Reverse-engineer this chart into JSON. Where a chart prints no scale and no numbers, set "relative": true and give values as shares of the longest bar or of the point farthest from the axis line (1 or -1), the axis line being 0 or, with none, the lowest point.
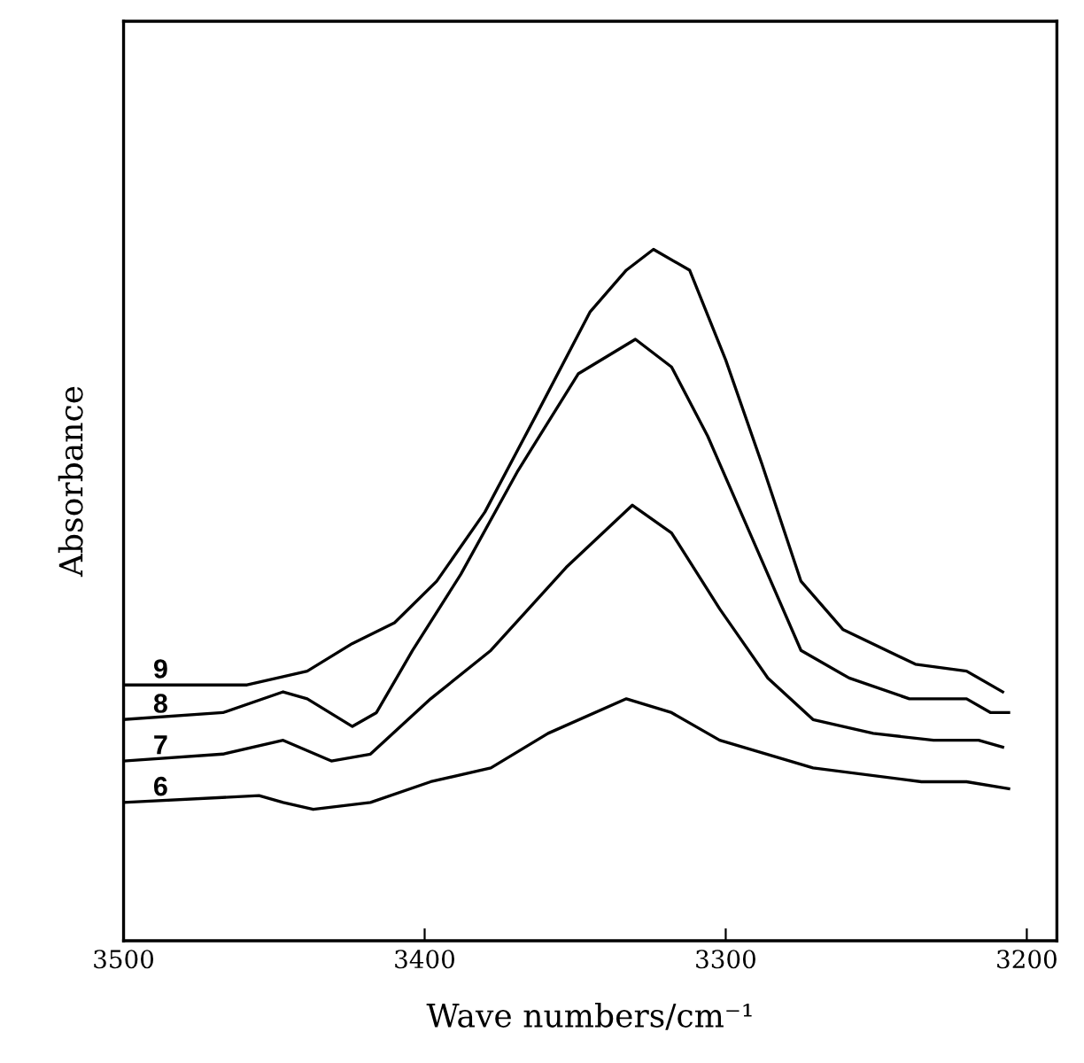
{
  "chart_data": {
    "type": "line",
    "xlabel": "Wave numbers/cm⁻¹",
    "ylabel": "Absorbance",
    "relative": true,
    "xlim": [
      3500,
      3190
    ],
    "xticks": [
      3500,
      3400,
      3300,
      3200
    ],
    "grid": false,
    "legend": false,
    "marker": "none",
    "line_style": "solid",
    "series": [
      {
        "name": "9",
        "color": "#000000",
        "x": [
          3500,
          3459,
          3439,
          3424,
          3410,
          3396,
          3380,
          3363,
          3345,
          3333,
          3324,
          3312,
          3300,
          3288,
          3275,
          3261,
          3237,
          3220,
          3208
        ],
        "values": [
          0.37,
          0.37,
          0.39,
          0.43,
          0.46,
          0.52,
          0.62,
          0.76,
          0.91,
          0.97,
          1.0,
          0.97,
          0.84,
          0.69,
          0.52,
          0.45,
          0.4,
          0.39,
          0.36
        ]
      },
      {
        "name": "8",
        "color": "#000000",
        "x": [
          3500,
          3467,
          3447,
          3439,
          3424,
          3416,
          3404,
          3388,
          3369,
          3349,
          3330,
          3318,
          3306,
          3290,
          3275,
          3259,
          3239,
          3220,
          3212,
          3206
        ],
        "values": [
          0.32,
          0.33,
          0.36,
          0.35,
          0.31,
          0.33,
          0.42,
          0.53,
          0.68,
          0.82,
          0.87,
          0.83,
          0.73,
          0.57,
          0.42,
          0.38,
          0.35,
          0.35,
          0.33,
          0.33
        ]
      },
      {
        "name": "7",
        "color": "#000000",
        "x": [
          3500,
          3467,
          3447,
          3431,
          3418,
          3398,
          3378,
          3353,
          3331,
          3318,
          3302,
          3286,
          3271,
          3251,
          3231,
          3216,
          3208
        ],
        "values": [
          0.26,
          0.27,
          0.29,
          0.26,
          0.27,
          0.35,
          0.42,
          0.54,
          0.63,
          0.59,
          0.48,
          0.38,
          0.32,
          0.3,
          0.29,
          0.29,
          0.28
        ]
      },
      {
        "name": "6",
        "color": "#000000",
        "x": [
          3500,
          3455,
          3447,
          3437,
          3418,
          3398,
          3378,
          3359,
          3333,
          3318,
          3302,
          3271,
          3235,
          3220,
          3206
        ],
        "values": [
          0.2,
          0.21,
          0.2,
          0.19,
          0.2,
          0.23,
          0.25,
          0.3,
          0.35,
          0.33,
          0.29,
          0.25,
          0.23,
          0.23,
          0.22
        ]
      }
    ]
  }
}
